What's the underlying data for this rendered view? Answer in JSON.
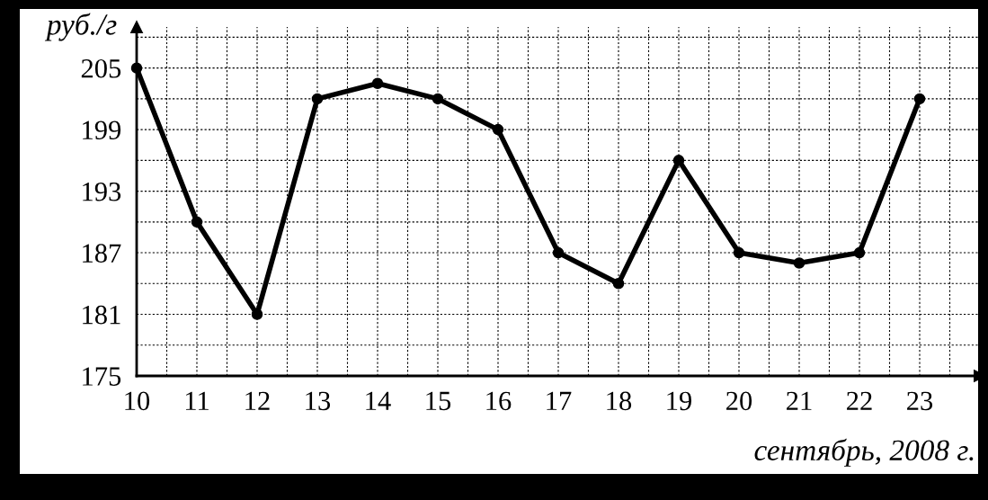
{
  "chart_data": {
    "type": "line",
    "xlabel": "сентябрь, 2008 г.",
    "ylabel": "руб./г",
    "x": [
      10,
      11,
      12,
      13,
      14,
      15,
      16,
      17,
      18,
      19,
      20,
      21,
      22,
      23
    ],
    "series": [
      {
        "color": "#000000",
        "values": [
          205,
          190,
          181,
          202,
          203.5,
          202,
          199,
          187,
          184,
          196,
          187,
          186,
          187,
          202
        ]
      }
    ],
    "xlim": [
      10,
      24
    ],
    "ylim": [
      175,
      209
    ],
    "xticks": [
      10,
      {
        "value": 10.5,
        "label": null
      },
      11,
      {
        "value": 11.5,
        "label": null
      },
      12,
      {
        "value": 12.5,
        "label": null
      },
      13,
      {
        "value": 13.5,
        "label": null
      },
      14,
      {
        "value": 14.5,
        "label": null
      },
      15,
      {
        "value": 15.5,
        "label": null
      },
      16,
      {
        "value": 16.5,
        "label": null
      },
      17,
      {
        "value": 17.5,
        "label": null
      },
      18,
      {
        "value": 18.5,
        "label": null
      },
      19,
      {
        "value": 19.5,
        "label": null
      },
      20,
      {
        "value": 20.5,
        "label": null
      },
      21,
      {
        "value": 21.5,
        "label": null
      },
      22,
      {
        "value": 22.5,
        "label": null
      },
      23,
      {
        "value": 23.5,
        "label": null
      }
    ],
    "yticks": [
      175,
      {
        "value": 178,
        "label": null
      },
      181,
      {
        "value": 184,
        "label": null
      },
      187,
      {
        "value": 190,
        "label": null
      },
      193,
      {
        "value": 196,
        "label": null
      },
      199,
      {
        "value": 202,
        "label": null
      },
      205,
      {
        "value": 208,
        "label": null
      }
    ],
    "grid": true,
    "marker": "circle",
    "line_style": "solid",
    "legend": false
  }
}
